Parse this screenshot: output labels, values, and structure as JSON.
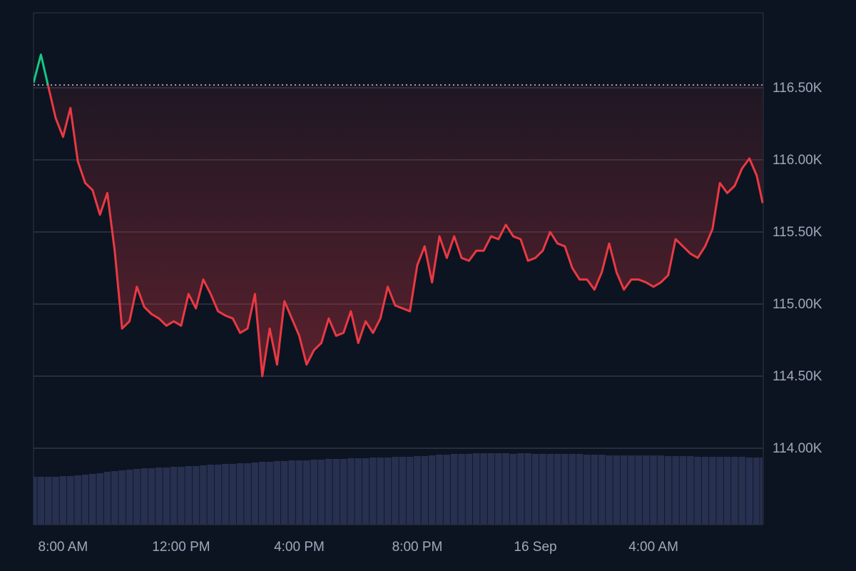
{
  "chart_data": {
    "type": "line",
    "x": [
      7.0,
      7.25,
      7.5,
      7.75,
      8.0,
      8.25,
      8.5,
      8.75,
      9.0,
      9.25,
      9.5,
      9.75,
      10.0,
      10.25,
      10.5,
      10.75,
      11.0,
      11.25,
      11.5,
      11.75,
      12.0,
      12.25,
      12.5,
      12.75,
      13.0,
      13.25,
      13.5,
      13.75,
      14.0,
      14.25,
      14.5,
      14.75,
      15.0,
      15.25,
      15.5,
      15.75,
      16.0,
      16.25,
      16.5,
      16.75,
      17.0,
      17.25,
      17.5,
      17.75,
      18.0,
      18.25,
      18.5,
      18.75,
      19.0,
      19.25,
      19.5,
      19.75,
      20.0,
      20.25,
      20.5,
      20.75,
      21.0,
      21.25,
      21.5,
      21.75,
      22.0,
      22.25,
      22.5,
      22.75,
      23.0,
      23.25,
      23.5,
      23.75,
      24.0,
      24.25,
      24.5,
      24.75,
      25.0,
      25.25,
      25.5,
      25.75,
      26.0,
      26.25,
      26.5,
      26.75,
      27.0,
      27.25,
      27.5,
      27.75,
      28.0,
      28.25,
      28.5,
      28.75,
      29.0,
      29.25,
      29.5,
      29.75,
      30.0,
      30.25,
      30.5,
      30.75,
      31.0,
      31.25,
      31.5,
      31.7
    ],
    "series": [
      {
        "values": [
          116535,
          116730,
          116510,
          116290,
          116160,
          116360,
          115990,
          115840,
          115790,
          115620,
          115770,
          115370,
          114830,
          114880,
          115120,
          114980,
          114930,
          114900,
          114850,
          114880,
          114850,
          115070,
          114970,
          115170,
          115070,
          114950,
          114920,
          114900,
          114800,
          114830,
          115070,
          114500,
          114830,
          114580,
          115020,
          114900,
          114780,
          114580,
          114680,
          114730,
          114900,
          114780,
          114800,
          114950,
          114730,
          114880,
          114800,
          114900,
          115120,
          114990,
          114970,
          114950,
          115270,
          115400,
          115150,
          115470,
          115320,
          115470,
          115320,
          115300,
          115370,
          115370,
          115470,
          115450,
          115550,
          115470,
          115450,
          115300,
          115320,
          115370,
          115500,
          115420,
          115400,
          115250,
          115170,
          115170,
          115100,
          115220,
          115420,
          115220,
          115100,
          115170,
          115170,
          115150,
          115120,
          115150,
          115200,
          115450,
          115400,
          115350,
          115320,
          115400,
          115520,
          115840,
          115770,
          115820,
          115940,
          116010,
          115890,
          115700
        ],
        "up_color": "#16c784",
        "color": "#ea3943"
      },
      {
        "type": "bar",
        "color": "#27304f",
        "values": [
          67,
          67,
          67,
          67,
          68,
          68,
          69,
          70,
          71,
          72,
          74,
          75,
          76,
          77,
          78,
          79,
          79,
          80,
          80,
          81,
          81,
          82,
          82,
          83,
          84,
          84,
          85,
          85,
          86,
          86,
          87,
          88,
          88,
          89,
          89,
          90,
          90,
          90,
          91,
          91,
          92,
          92,
          92,
          93,
          93,
          93,
          94,
          94,
          94,
          95,
          95,
          95,
          96,
          96,
          97,
          98,
          98,
          99,
          99,
          99,
          100,
          100,
          100,
          100,
          100,
          99,
          100,
          100,
          99,
          99,
          99,
          99,
          99,
          99,
          99,
          98,
          98,
          98,
          97,
          97,
          97,
          97,
          97,
          97,
          97,
          97,
          96,
          96,
          96,
          96,
          95,
          95,
          95,
          95,
          95,
          95,
          95,
          94,
          94,
          94
        ]
      }
    ],
    "volume_lim": [
      0,
      120
    ],
    "baseline": 116520,
    "xlim": [
      7.0,
      31.72
    ],
    "ylim": [
      113470,
      117020
    ],
    "xticks": [
      {
        "value": 8,
        "label": "8:00 AM"
      },
      {
        "value": 12,
        "label": "12:00 PM"
      },
      {
        "value": 16,
        "label": "4:00 PM"
      },
      {
        "value": 20,
        "label": "8:00 PM"
      },
      {
        "value": 24,
        "label": "16 Sep"
      },
      {
        "value": 28,
        "label": "4:00 AM"
      }
    ],
    "yticks": [
      {
        "value": 114000,
        "label": "114.00K"
      },
      {
        "value": 114500,
        "label": "114.50K"
      },
      {
        "value": 115000,
        "label": "115.00K"
      },
      {
        "value": 115500,
        "label": "115.50K"
      },
      {
        "value": 116000,
        "label": "116.00K"
      },
      {
        "value": 116500,
        "label": "116.50K"
      }
    ],
    "grid": true
  }
}
